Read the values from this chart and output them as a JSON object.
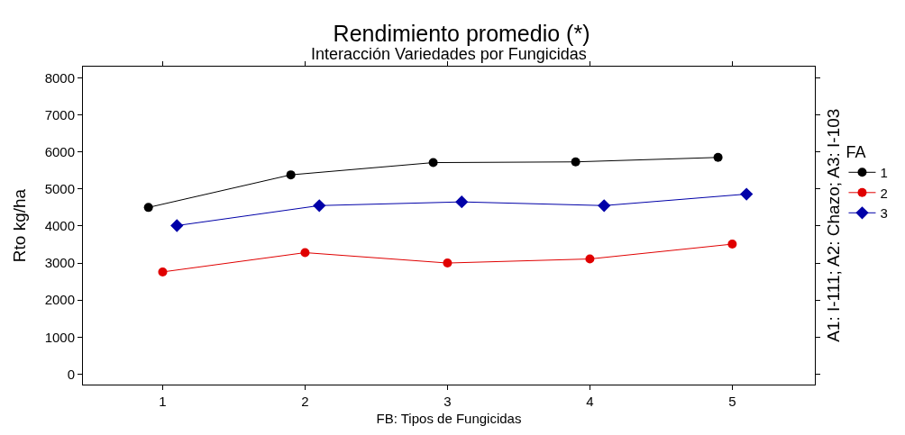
{
  "chart_data": {
    "type": "line",
    "title": "Rendimiento promedio (*)",
    "subtitle": "Interacción Variedades por Fungicidas",
    "xlabel": "FB: Tipos de Fungicidas",
    "ylabel": "Rto kg/ha",
    "y2label": "A1: I-111; A2: Chazo; A3: I-103",
    "legend_title": "FA",
    "xlim": [
      0.44,
      5.58
    ],
    "xticks": [
      1,
      2,
      3,
      4,
      5
    ],
    "ylim": [
      -280,
      8300
    ],
    "yticks": [
      0,
      1000,
      2000,
      3000,
      4000,
      5000,
      6000,
      7000,
      8000
    ],
    "legend": "right",
    "series": [
      {
        "name": "1",
        "color": "#000000",
        "marker": "circle",
        "x": [
          0.9,
          1.9,
          2.9,
          3.9,
          4.9
        ],
        "values": [
          4500,
          5380,
          5710,
          5730,
          5850
        ]
      },
      {
        "name": "2",
        "color": "#e00000",
        "marker": "circle",
        "x": [
          1.0,
          2.0,
          3.0,
          4.0,
          5.0
        ],
        "values": [
          2760,
          3280,
          3000,
          3110,
          3510
        ]
      },
      {
        "name": "3",
        "color": "#0000a8",
        "marker": "diamond",
        "x": [
          1.1,
          2.1,
          3.1,
          4.1,
          5.1
        ],
        "values": [
          4010,
          4550,
          4650,
          4550,
          4860
        ]
      }
    ]
  }
}
